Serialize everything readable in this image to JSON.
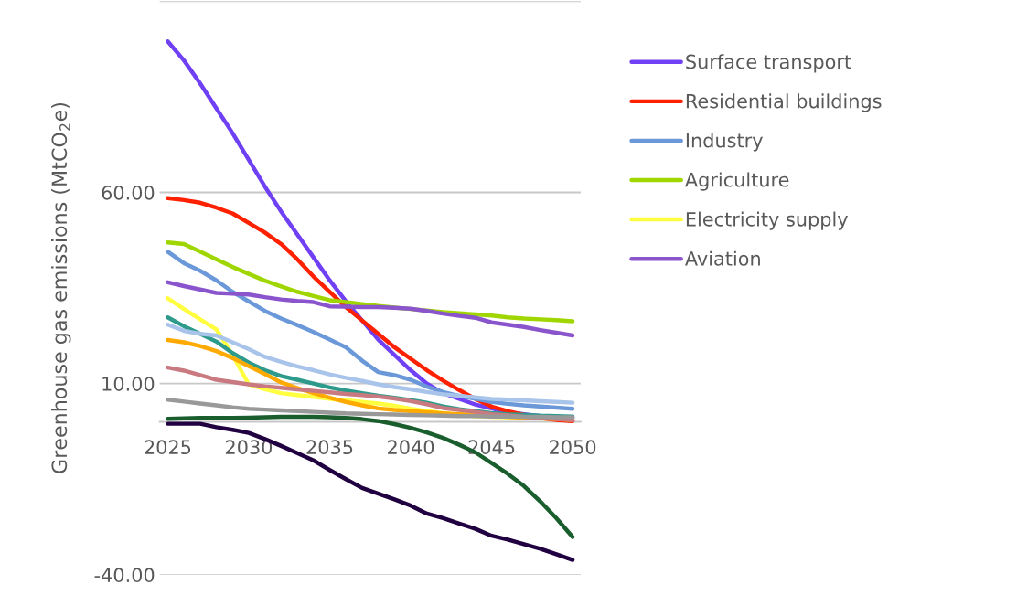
{
  "chart_data": {
    "type": "line",
    "ylabel": "Greenhouse gas emissions (MtCO$_{2}$e)",
    "x": [
      2025,
      2026,
      2027,
      2028,
      2029,
      2030,
      2031,
      2032,
      2033,
      2034,
      2035,
      2036,
      2037,
      2038,
      2039,
      2040,
      2041,
      2042,
      2043,
      2044,
      2045,
      2046,
      2047,
      2048,
      2049,
      2050
    ],
    "xlim": [
      2024.5,
      2050.5
    ],
    "xticks": [
      2025,
      2030,
      2035,
      2040,
      2045,
      2050
    ],
    "ylim": [
      -40,
      110
    ],
    "yticks": [
      {
        "value": -40,
        "label": "-40.00"
      },
      {
        "value": 10,
        "label": "10.00"
      },
      {
        "value": 60,
        "label": "60.00"
      },
      {
        "value": 110,
        "label": null
      }
    ],
    "grid": "y",
    "legend": "right",
    "marker": "none",
    "line_style": "solid",
    "series": [
      {
        "name": "Surface transport",
        "color": "#7040f5",
        "values": [
          99.5,
          94.5,
          88.5,
          82,
          75.5,
          68.5,
          61.5,
          55,
          49,
          43,
          37,
          31.5,
          26.5,
          21.5,
          17.5,
          13.5,
          10,
          7.5,
          6,
          4.5,
          3.5,
          2.5,
          2,
          1.5,
          1.2,
          1
        ]
      },
      {
        "name": "Residential buildings",
        "color": "#ff2000",
        "values": [
          58.5,
          58,
          57.3,
          56,
          54.5,
          52,
          49.5,
          46.5,
          42.5,
          38,
          34,
          30,
          26.5,
          23,
          19.5,
          16.5,
          13.5,
          10.8,
          8.3,
          6,
          4,
          2.8,
          1.8,
          1,
          0.5,
          0.2
        ]
      },
      {
        "name": "Industry",
        "color": "#6a98d8",
        "values": [
          44.5,
          41.5,
          39.5,
          37,
          34,
          31.5,
          29,
          27,
          25.3,
          23.5,
          21.5,
          19.5,
          16,
          13,
          12.2,
          11,
          9.2,
          7.8,
          6.8,
          6,
          5.2,
          4.7,
          4.3,
          4,
          3.7,
          3.4
        ]
      },
      {
        "name": "Agriculture",
        "color": "#9fd600",
        "values": [
          46.9,
          46.5,
          44.5,
          42.5,
          40.5,
          38.7,
          36.9,
          35.4,
          34,
          32.9,
          31.8,
          31.3,
          30.8,
          30.3,
          29.9,
          29.5,
          29.1,
          28.7,
          28.4,
          28.1,
          27.8,
          27.3,
          27,
          26.8,
          26.6,
          26.3
        ]
      },
      {
        "name": "Electricity supply",
        "color": "#ffff40",
        "values": [
          32.3,
          29.5,
          26.8,
          24.2,
          17.5,
          9.8,
          8.5,
          7.5,
          7,
          6.5,
          6,
          5.6,
          5.2,
          4.8,
          4.2,
          3.4,
          2.8,
          2.2,
          1.8,
          1.5,
          1.3,
          1.2,
          1.1,
          1,
          null,
          null
        ]
      },
      {
        "name": "Aviation",
        "color": "#8a55cc",
        "values": [
          36.5,
          35.5,
          34.6,
          33.7,
          33.5,
          33.3,
          32.6,
          32,
          31.6,
          31.3,
          30.2,
          30.1,
          30,
          30,
          29.8,
          29.6,
          29,
          28.3,
          27.7,
          27.2,
          26,
          25.4,
          24.8,
          24,
          23.3,
          22.6
        ]
      },
      {
        "color": "#2e9a8c",
        "values": [
          27.3,
          25,
          23,
          21,
          18,
          15.5,
          13.5,
          12,
          11,
          10,
          9,
          8.2,
          7.5,
          6.8,
          6.3,
          5.7,
          5,
          4,
          3.3,
          2.8,
          2.3,
          2,
          1.8,
          1.6,
          1.5,
          1.4
        ]
      },
      {
        "color": "#a9c4ea",
        "values": [
          25.4,
          23.8,
          23,
          22.6,
          20.8,
          19,
          17,
          15.7,
          14.5,
          13.5,
          12.4,
          11.5,
          10.7,
          9.8,
          9.1,
          8.5,
          7.8,
          7.2,
          6.8,
          6.4,
          6,
          5.8,
          5.6,
          5.4,
          5.2,
          5
        ]
      },
      {
        "color": "#ffaa00",
        "values": [
          21.4,
          20.8,
          19.8,
          18.5,
          16.7,
          14.6,
          12.5,
          10.3,
          8.8,
          7.5,
          6.3,
          5.2,
          4.3,
          3.5,
          3.1,
          2.8,
          2.5,
          2.2,
          2,
          1.8,
          1.5,
          1.3,
          1.1,
          0.9,
          0.7,
          0.5
        ]
      },
      {
        "color": "#c87a80",
        "values": [
          14.2,
          13.4,
          12.2,
          11,
          10.4,
          9.8,
          9.3,
          8.9,
          8.5,
          8.1,
          7.7,
          7.3,
          7,
          6.6,
          6.1,
          5.4,
          4.6,
          3.6,
          3.1,
          2.6,
          2,
          1.7,
          1.3,
          1,
          0.7,
          0.4
        ]
      },
      {
        "color": "#999999",
        "values": [
          5.8,
          5.3,
          4.8,
          4.3,
          3.8,
          3.4,
          3.2,
          3,
          2.8,
          2.6,
          2.4,
          2.2,
          2.1,
          2,
          1.9,
          1.8,
          1.7,
          1.6,
          1.5,
          1.5,
          1.4,
          1.4,
          1.3,
          1.3,
          1.2,
          1.2
        ]
      },
      {
        "color": "#1a5e2e",
        "values": [
          0.8,
          0.9,
          1,
          1,
          1,
          1.1,
          1.2,
          1.3,
          1.3,
          1.3,
          1.2,
          1,
          0.7,
          0.2,
          -0.6,
          -1.6,
          -2.8,
          -4.2,
          -6,
          -8,
          -10.8,
          -13.6,
          -16.8,
          -20.8,
          -25.2,
          -30.1
        ]
      },
      {
        "color": "#200040",
        "values": [
          -0.5,
          -0.5,
          -0.5,
          -1.4,
          -2.1,
          -2.9,
          -4.5,
          -6.3,
          -8.2,
          -10.1,
          -12.6,
          -15,
          -17.3,
          -18.8,
          -20.3,
          -21.9,
          -24,
          -25.2,
          -26.6,
          -28,
          -29.8,
          -30.8,
          -32,
          -33.2,
          -34.6,
          -36.1
        ]
      }
    ]
  }
}
